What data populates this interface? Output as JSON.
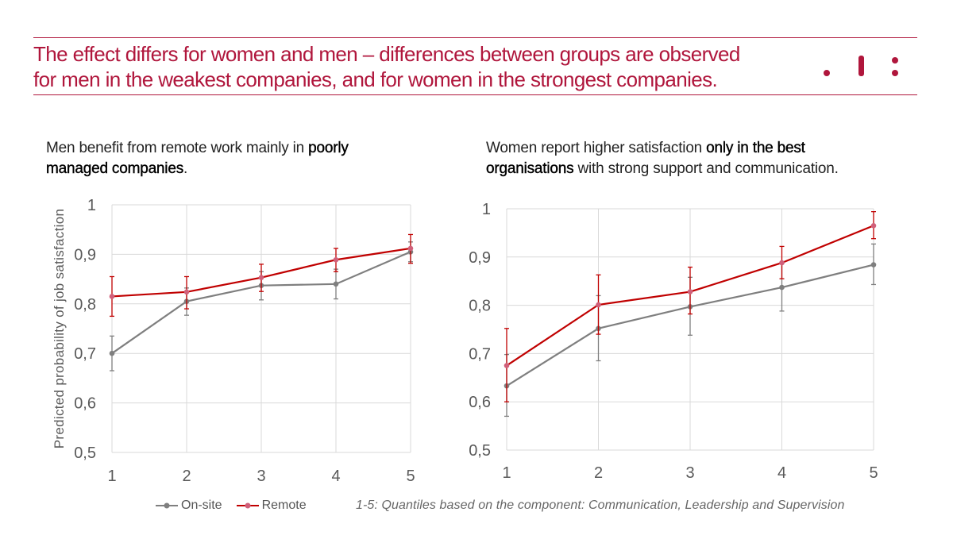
{
  "header": {
    "title_line1": "The effect differs for women and men – differences between groups are observed",
    "title_line2": "for men in the weakest companies, and for women in the strongest companies.",
    "accent_color": "#b0163c",
    "logo_icon": "ibs-logo-icon"
  },
  "left_panel": {
    "subtitle_plain1": "Men benefit from remote work mainly in ",
    "subtitle_bold1": "poorly",
    "subtitle_bold2": "managed companies",
    "subtitle_plain2": "."
  },
  "right_panel": {
    "subtitle_plain1": "Women report higher satisfaction ",
    "subtitle_bold1": "only in the best",
    "subtitle_bold2": "organisations",
    "subtitle_plain2": " with strong support and communication."
  },
  "legend": {
    "onsite": "On-site",
    "remote": "Remote"
  },
  "footnote": "1-5: Quantiles based on the component: Communication, Leadership and Supervision",
  "colors": {
    "onsite": "#7f7f7f",
    "remote": "#c00000",
    "remote_marker": "#d0607a",
    "grid": "#d9d9d9"
  },
  "chart_data": [
    {
      "type": "line",
      "x": [
        1,
        2,
        3,
        4,
        5
      ],
      "ylabel": "Predicted probability of job satisfaction",
      "ylim": [
        0.5,
        1
      ],
      "y_ticks": [
        "0,5",
        "0,6",
        "0,7",
        "0,8",
        "0,9",
        "1"
      ],
      "x_ticks": [
        "1",
        "2",
        "3",
        "4",
        "5"
      ],
      "grid": true,
      "series": [
        {
          "name": "On-site",
          "values": [
            0.7,
            0.805,
            0.837,
            0.84,
            0.905
          ],
          "err_low": [
            0.665,
            0.777,
            0.808,
            0.81,
            0.885
          ],
          "err_high": [
            0.735,
            0.832,
            0.865,
            0.87,
            0.925
          ]
        },
        {
          "name": "Remote",
          "values": [
            0.815,
            0.824,
            0.853,
            0.889,
            0.912
          ],
          "err_low": [
            0.775,
            0.79,
            0.825,
            0.865,
            0.882
          ],
          "err_high": [
            0.855,
            0.855,
            0.88,
            0.912,
            0.94
          ]
        }
      ]
    },
    {
      "type": "line",
      "x": [
        1,
        2,
        3,
        4,
        5
      ],
      "ylabel": "",
      "ylim": [
        0.5,
        1
      ],
      "y_ticks": [
        "0,5",
        "0,6",
        "0,7",
        "0,8",
        "0,9",
        "1"
      ],
      "x_ticks": [
        "1",
        "2",
        "3",
        "4",
        "5"
      ],
      "grid": true,
      "series": [
        {
          "name": "On-site",
          "values": [
            0.633,
            0.752,
            0.797,
            0.837,
            0.884
          ],
          "err_low": [
            0.57,
            0.685,
            0.738,
            0.788,
            0.843
          ],
          "err_high": [
            0.698,
            0.82,
            0.858,
            0.886,
            0.927
          ]
        },
        {
          "name": "Remote",
          "values": [
            0.675,
            0.801,
            0.828,
            0.888,
            0.965
          ],
          "err_low": [
            0.6,
            0.74,
            0.782,
            0.855,
            0.938
          ],
          "err_high": [
            0.752,
            0.863,
            0.879,
            0.922,
            0.994
          ]
        }
      ]
    }
  ]
}
